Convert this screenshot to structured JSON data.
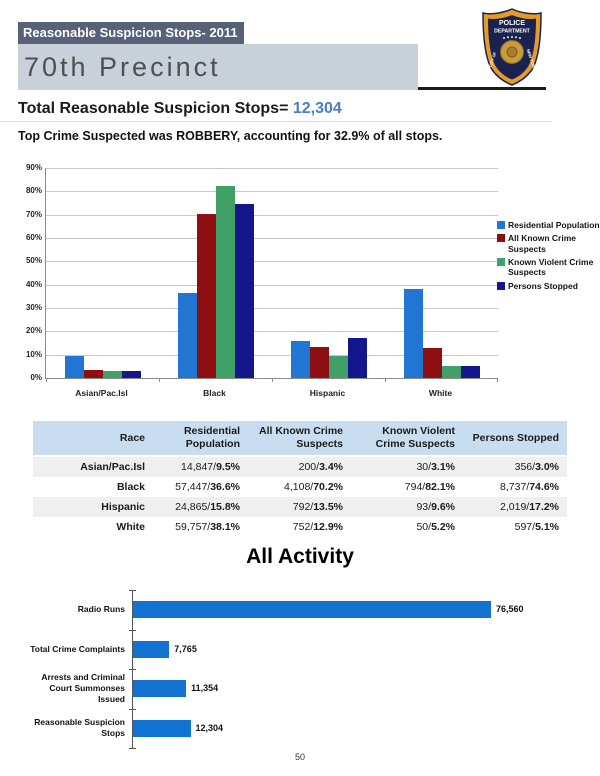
{
  "header": {
    "report_title": "Reasonable Suspicion Stops- 2011",
    "precinct": "70th Precinct",
    "total_label": "Total Reasonable Suspicion Stops=",
    "total_value": "12,304",
    "subtitle": "Top Crime Suspected was ROBBERY, accounting for  32.9%  of all stops.",
    "logo": {
      "top": "POLICE",
      "mid": "DEPARTMENT",
      "left": "CITY OF",
      "right": "NEW YORK"
    }
  },
  "colors": {
    "title_bar_bg": "#596179",
    "precinct_bar_bg": "#c8d1d9",
    "accent_blue": "#4a7ec0",
    "table_header_bg": "#c9ddf1",
    "table_alt_row_bg": "#efefef"
  },
  "chart_data": [
    {
      "type": "bar",
      "title": "",
      "categories": [
        "Asian/Pac.Isl",
        "Black",
        "Hispanic",
        "White"
      ],
      "series": [
        {
          "name": "Residential Population",
          "color": "#2176d4",
          "values": [
            9.5,
            36.6,
            15.8,
            38.1
          ]
        },
        {
          "name": "All Known Crime Suspects",
          "color": "#8e0f11",
          "values": [
            3.4,
            70.2,
            13.5,
            12.9
          ]
        },
        {
          "name": "Known Violent Crime Suspects",
          "color": "#3fa068",
          "values": [
            3.1,
            82.1,
            9.6,
            5.2
          ]
        },
        {
          "name": "Persons Stopped",
          "color": "#14178c",
          "values": [
            3.0,
            74.6,
            17.2,
            5.1
          ]
        }
      ],
      "ylim": [
        0,
        90
      ],
      "ytick_step": 10,
      "ytick_suffix": "%",
      "grid": true,
      "legend_position": "right"
    },
    {
      "type": "bar-horizontal",
      "title": "All Activity",
      "categories": [
        "Radio Runs",
        "Total Crime Complaints",
        "Arrests and Criminal Court Summonses Issued",
        "Reasonable Suspicion Stops"
      ],
      "values": [
        76560,
        7765,
        11354,
        12304
      ],
      "value_labels": [
        "76,560",
        "7,765",
        "11,354",
        "12,304"
      ],
      "color": "#1272d2",
      "xmax": 80000,
      "grid": false
    }
  ],
  "table": {
    "headers": [
      "Race",
      "Residential Population",
      "All Known Crime Suspects",
      "Known Violent Crime Suspects",
      "Persons Stopped"
    ],
    "rows": [
      {
        "race": "Asian/Pac.Isl",
        "values": [
          {
            "count": "14,847",
            "pct": "9.5%"
          },
          {
            "count": "200",
            "pct": "3.4%"
          },
          {
            "count": "30",
            "pct": "3.1%"
          },
          {
            "count": "356",
            "pct": "3.0%"
          }
        ]
      },
      {
        "race": "Black",
        "values": [
          {
            "count": "57,447",
            "pct": "36.6%"
          },
          {
            "count": "4,108",
            "pct": "70.2%"
          },
          {
            "count": "794",
            "pct": "82.1%"
          },
          {
            "count": "8,737",
            "pct": "74.6%"
          }
        ]
      },
      {
        "race": "Hispanic",
        "values": [
          {
            "count": "24,865",
            "pct": "15.8%"
          },
          {
            "count": "792",
            "pct": "13.5%"
          },
          {
            "count": "93",
            "pct": "9.6%"
          },
          {
            "count": "2,019",
            "pct": "17.2%"
          }
        ]
      },
      {
        "race": "White",
        "values": [
          {
            "count": "59,757",
            "pct": "38.1%"
          },
          {
            "count": "752",
            "pct": "12.9%"
          },
          {
            "count": "50",
            "pct": "5.2%"
          },
          {
            "count": "597",
            "pct": "5.1%"
          }
        ]
      }
    ]
  },
  "footer": {
    "page_number": "50"
  }
}
